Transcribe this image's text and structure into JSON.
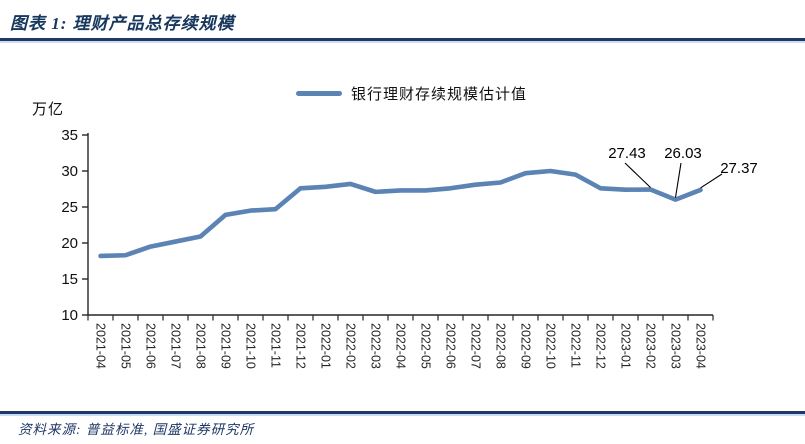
{
  "header": {
    "title": "图表 1: 理财产品总存续规模"
  },
  "legend": {
    "label": "银行理财存续规模估计值"
  },
  "footer": {
    "source": "资料来源: 普益标准, 国盛证券研究所"
  },
  "chart_data": {
    "type": "line",
    "title": "理财产品总存续规模",
    "ylabel_unit": "万亿",
    "xlabel": "",
    "ylim": [
      10,
      35
    ],
    "yticks": [
      10,
      15,
      20,
      25,
      30,
      35
    ],
    "grid": false,
    "legend_position": "top-center",
    "line_color": "#5B83B4",
    "axis_color": "#262626",
    "categories": [
      "2021-04",
      "2021-05",
      "2021-06",
      "2021-07",
      "2021-08",
      "2021-09",
      "2021-10",
      "2021-11",
      "2021-12",
      "2022-01",
      "2022-02",
      "2022-03",
      "2022-04",
      "2022-05",
      "2022-06",
      "2022-07",
      "2022-08",
      "2022-09",
      "2022-10",
      "2022-11",
      "2022-12",
      "2023-01",
      "2023-02",
      "2023-03",
      "2023-04"
    ],
    "series": [
      {
        "name": "银行理财存续规模估计值",
        "values": [
          18.2,
          18.3,
          19.5,
          20.2,
          20.9,
          23.9,
          24.5,
          24.7,
          27.6,
          27.8,
          28.2,
          27.1,
          27.3,
          27.3,
          27.6,
          28.1,
          28.4,
          29.7,
          30.0,
          29.5,
          27.6,
          27.4,
          27.43,
          26.03,
          27.37
        ]
      }
    ],
    "annotations": [
      {
        "label": "27.43",
        "category": "2023-02",
        "index": 22,
        "value": 27.43
      },
      {
        "label": "26.03",
        "category": "2023-03",
        "index": 23,
        "value": 26.03
      },
      {
        "label": "27.37",
        "category": "2023-04",
        "index": 24,
        "value": 27.37
      }
    ]
  }
}
